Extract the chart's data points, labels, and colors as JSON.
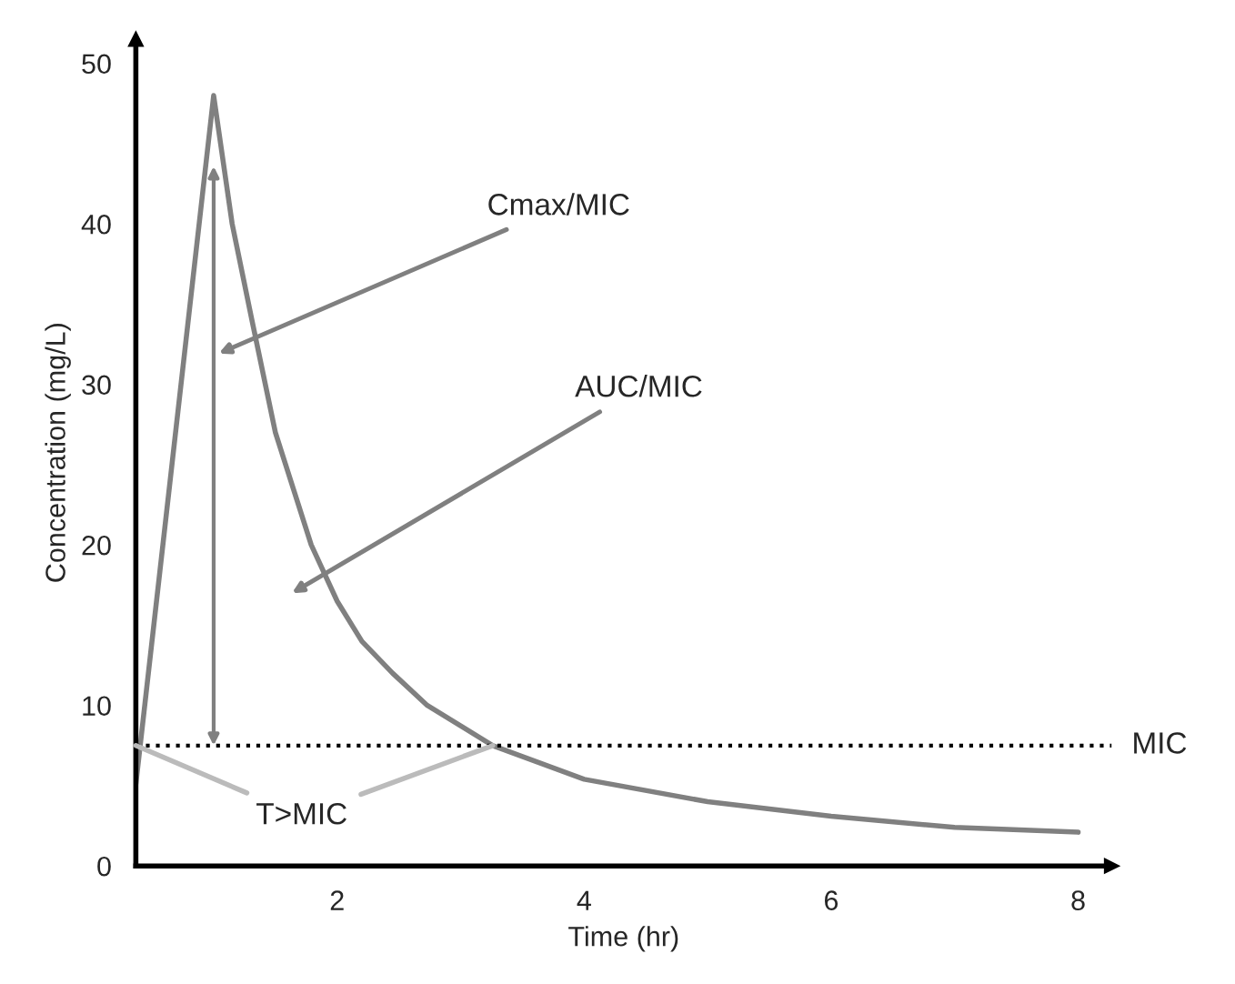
{
  "chart_data": {
    "type": "line",
    "xlabel": "Time (hr)",
    "ylabel": "Concentration (mg/L)",
    "x": [
      0.37,
      1.0,
      1.15,
      1.31,
      1.5,
      1.79,
      2.0,
      2.2,
      2.45,
      2.73,
      3.26,
      4,
      5,
      6,
      7,
      8
    ],
    "series": [
      {
        "color": "#808080",
        "values": [
          5.1,
          48,
          40,
          34,
          27,
          20,
          16.5,
          14,
          12,
          10,
          7.5,
          5.4,
          4.0,
          3.1,
          2.4,
          2.1
        ]
      }
    ],
    "xlim": [
      0.37,
      8.27
    ],
    "ylim": [
      0,
      51.5
    ],
    "xticks": [
      2,
      4,
      6,
      8
    ],
    "yticks": [
      0,
      10,
      20,
      30,
      40,
      50
    ],
    "ref_lines": [
      {
        "axis": "y",
        "value": 7.5,
        "label": "MIC",
        "color": "#000000",
        "line_style": "dotted"
      }
    ],
    "annotations": [
      "Cmax/MIC",
      "AUC/MIC",
      {
        "text": "T>MIC",
        "x": 3.26,
        "y": 7.5
      }
    ],
    "grid": false,
    "legend": false,
    "marker": "none",
    "line_style": "solid"
  }
}
